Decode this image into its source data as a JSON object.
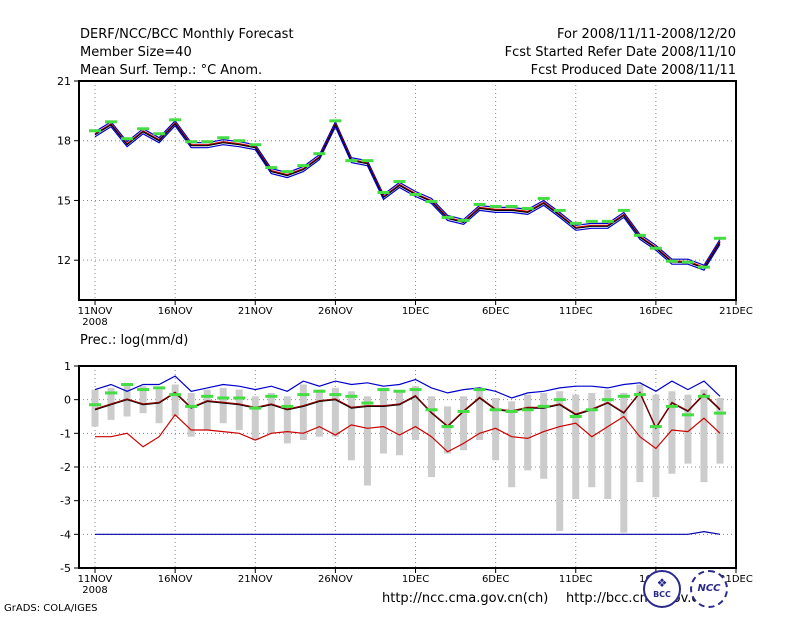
{
  "header": {
    "title": "DERF/NCC/BCC Monthly Forecast",
    "member": "Member Size=40",
    "variable": "Mean Surf. Temp.: °C Anom.",
    "period": "For 2008/11/11-2008/12/20",
    "started": "Fcst Started Refer Date 2008/11/10",
    "produced": "Fcst Produced Date 2008/11/11"
  },
  "precip_label": "Prec.: log(mm/d)",
  "footer": {
    "credit": "GrADS: COLA/IGES",
    "url1": "http://ncc.cma.gov.cn(ch)",
    "url2": "http://bcc.cma.gov.cn",
    "logo1": "BCC",
    "logo2": "NCC"
  },
  "colors": {
    "series_blue": "#0000cc",
    "series_red": "#cc0000",
    "series_black": "#000000",
    "observed": "#44dd44",
    "bars": "#cccccc",
    "grid": "#888888"
  },
  "chart_data": [
    {
      "type": "line",
      "title": "Mean Surf. Temp.: °C Anom.",
      "xlabel": "",
      "ylabel": "",
      "x": [
        0,
        1,
        2,
        3,
        4,
        5,
        6,
        7,
        8,
        9,
        10,
        11,
        12,
        13,
        14,
        15,
        16,
        17,
        18,
        19,
        20,
        21,
        22,
        23,
        24,
        25,
        26,
        27,
        28,
        29,
        30,
        31,
        32,
        33,
        34,
        35,
        36,
        37,
        38,
        39
      ],
      "xlim": [
        -1,
        40
      ],
      "ylim": [
        10,
        21
      ],
      "yticks": [
        12,
        15,
        18,
        21
      ],
      "xticks": [
        {
          "x": 0,
          "label": "11NOV"
        },
        {
          "x": 5,
          "label": "16NOV"
        },
        {
          "x": 10,
          "label": "21NOV"
        },
        {
          "x": 15,
          "label": "26NOV"
        },
        {
          "x": 20,
          "label": "1DEC"
        },
        {
          "x": 25,
          "label": "6DEC"
        },
        {
          "x": 30,
          "label": "11DEC"
        },
        {
          "x": 35,
          "label": "16DEC"
        },
        {
          "x": 40,
          "label": "21DEC"
        }
      ],
      "year_label": "2008",
      "grid": true,
      "series": [
        {
          "name": "upper",
          "color": "#0000cc",
          "values": [
            18.45,
            18.95,
            17.95,
            18.6,
            18.15,
            19.0,
            17.9,
            17.9,
            18.05,
            17.95,
            17.8,
            16.6,
            16.4,
            16.7,
            17.3,
            18.95,
            17.15,
            17.0,
            15.3,
            15.9,
            15.45,
            15.1,
            14.25,
            14.05,
            14.75,
            14.65,
            14.65,
            14.55,
            15.0,
            14.4,
            13.75,
            13.85,
            13.85,
            14.4,
            13.3,
            12.75,
            12.05,
            12.05,
            11.75,
            13.05
          ]
        },
        {
          "name": "red",
          "color": "#cc0000",
          "values": [
            18.35,
            18.85,
            17.85,
            18.5,
            18.05,
            18.9,
            17.8,
            17.8,
            17.95,
            17.85,
            17.7,
            16.5,
            16.3,
            16.6,
            17.2,
            18.85,
            17.05,
            16.9,
            15.2,
            15.8,
            15.35,
            15.0,
            14.15,
            13.95,
            14.65,
            14.55,
            14.55,
            14.45,
            14.9,
            14.3,
            13.65,
            13.75,
            13.75,
            14.3,
            13.2,
            12.65,
            11.95,
            11.95,
            11.65,
            12.95
          ]
        },
        {
          "name": "mean",
          "color": "#000000",
          "values": [
            18.3,
            18.8,
            17.8,
            18.45,
            18.0,
            18.85,
            17.75,
            17.75,
            17.9,
            17.8,
            17.65,
            16.45,
            16.25,
            16.55,
            17.15,
            18.8,
            17.0,
            16.85,
            15.15,
            15.75,
            15.3,
            14.95,
            14.1,
            13.9,
            14.6,
            14.5,
            14.5,
            14.4,
            14.85,
            14.25,
            13.6,
            13.7,
            13.7,
            14.25,
            13.15,
            12.6,
            11.9,
            11.9,
            11.6,
            12.9
          ]
        },
        {
          "name": "lower",
          "color": "#0000cc",
          "values": [
            18.2,
            18.7,
            17.7,
            18.35,
            17.9,
            18.75,
            17.65,
            17.65,
            17.8,
            17.7,
            17.55,
            16.35,
            16.15,
            16.45,
            17.05,
            18.7,
            16.9,
            16.75,
            15.05,
            15.65,
            15.2,
            14.85,
            14.0,
            13.8,
            14.5,
            14.4,
            14.4,
            14.3,
            14.75,
            14.15,
            13.5,
            13.6,
            13.6,
            14.15,
            13.05,
            12.5,
            11.8,
            11.8,
            11.5,
            12.8
          ]
        },
        {
          "name": "observed",
          "color": "#44dd44",
          "marker": "dash",
          "values": [
            18.5,
            18.95,
            18.1,
            18.6,
            18.35,
            19.05,
            17.95,
            17.95,
            18.15,
            18.0,
            17.8,
            16.65,
            16.45,
            16.75,
            17.35,
            19.0,
            17.0,
            17.0,
            15.4,
            15.95,
            15.3,
            14.95,
            14.15,
            14.0,
            14.8,
            14.7,
            14.7,
            14.6,
            15.1,
            14.5,
            13.85,
            13.95,
            13.95,
            14.5,
            13.25,
            12.6,
            11.95,
            11.9,
            11.65,
            13.1
          ]
        }
      ]
    },
    {
      "type": "line",
      "title": "Prec.: log(mm/d)",
      "xlabel": "",
      "ylabel": "",
      "x": [
        0,
        1,
        2,
        3,
        4,
        5,
        6,
        7,
        8,
        9,
        10,
        11,
        12,
        13,
        14,
        15,
        16,
        17,
        18,
        19,
        20,
        21,
        22,
        23,
        24,
        25,
        26,
        27,
        28,
        29,
        30,
        31,
        32,
        33,
        34,
        35,
        36,
        37,
        38,
        39
      ],
      "xlim": [
        -1,
        40
      ],
      "ylim": [
        -5,
        1
      ],
      "yticks": [
        -5,
        -4,
        -3,
        -2,
        -1,
        0,
        1
      ],
      "xticks": [
        {
          "x": 0,
          "label": "11NOV"
        },
        {
          "x": 5,
          "label": "16NOV"
        },
        {
          "x": 10,
          "label": "21NOV"
        },
        {
          "x": 15,
          "label": "26NOV"
        },
        {
          "x": 20,
          "label": "1DEC"
        },
        {
          "x": 25,
          "label": "6DEC"
        },
        {
          "x": 30,
          "label": "11DEC"
        },
        {
          "x": 35,
          "label": "16DEC"
        },
        {
          "x": 40,
          "label": "21DEC"
        }
      ],
      "year_label": "2008",
      "grid": true,
      "bars": {
        "name": "ensemble range",
        "color": "#cccccc",
        "low": [
          -0.8,
          -0.6,
          -0.5,
          -0.4,
          -0.7,
          -0.5,
          -1.1,
          -0.9,
          -0.7,
          -0.9,
          -1.2,
          -1.0,
          -1.3,
          -1.2,
          -1.1,
          -1.1,
          -1.8,
          -2.55,
          -1.6,
          -1.65,
          -1.2,
          -2.3,
          -1.6,
          -1.5,
          -1.2,
          -1.8,
          -2.6,
          -2.1,
          -2.35,
          -3.9,
          -2.95,
          -2.6,
          -2.95,
          -3.95,
          -2.45,
          -2.9,
          -2.2,
          -1.9,
          -2.45,
          -1.9
        ],
        "high": [
          0.3,
          0.35,
          0.5,
          0.4,
          0.3,
          0.45,
          0.2,
          0.3,
          0.35,
          0.3,
          0.1,
          0.2,
          0.1,
          0.45,
          0.3,
          0.35,
          0.25,
          0.1,
          0.35,
          0.25,
          0.4,
          0.1,
          -0.2,
          0.1,
          0.3,
          0.05,
          -0.05,
          0.15,
          0.2,
          0.25,
          0.15,
          0.2,
          0.3,
          0.2,
          0.45,
          0.15,
          0.25,
          0.15,
          0.3,
          0.05
        ]
      },
      "series": [
        {
          "name": "upper",
          "color": "#0000cc",
          "values": [
            0.3,
            0.45,
            0.25,
            0.45,
            0.45,
            0.7,
            0.25,
            0.35,
            0.45,
            0.4,
            0.3,
            0.4,
            0.25,
            0.55,
            0.4,
            0.55,
            0.45,
            0.5,
            0.4,
            0.45,
            0.6,
            0.35,
            0.2,
            0.3,
            0.35,
            0.25,
            0.05,
            0.2,
            0.25,
            0.35,
            0.4,
            0.4,
            0.35,
            0.45,
            0.5,
            0.25,
            0.55,
            0.3,
            0.55,
            0.1
          ]
        },
        {
          "name": "red",
          "color": "#cc0000",
          "values": [
            -1.1,
            -1.1,
            -1.0,
            -1.4,
            -1.1,
            -0.45,
            -0.9,
            -0.9,
            -0.95,
            -1.0,
            -1.2,
            -1.0,
            -0.95,
            -1.0,
            -0.8,
            -1.05,
            -0.75,
            -0.85,
            -0.8,
            -1.05,
            -0.8,
            -1.1,
            -1.55,
            -1.3,
            -1.0,
            -0.85,
            -1.1,
            -1.15,
            -0.95,
            -0.8,
            -0.7,
            -1.1,
            -0.8,
            -0.5,
            -1.1,
            -1.45,
            -0.9,
            -0.95,
            -0.55,
            -1.0
          ]
        },
        {
          "name": "mean",
          "color": "#000000",
          "values": [
            -0.3,
            -0.15,
            0.0,
            -0.15,
            -0.1,
            0.2,
            -0.25,
            -0.05,
            -0.1,
            -0.15,
            -0.25,
            -0.15,
            -0.3,
            -0.2,
            -0.05,
            0.0,
            -0.25,
            -0.2,
            -0.2,
            -0.15,
            0.1,
            -0.4,
            -0.8,
            -0.35,
            0.05,
            -0.3,
            -0.35,
            -0.25,
            -0.25,
            -0.15,
            -0.45,
            -0.3,
            -0.1,
            -0.4,
            0.2,
            -0.85,
            -0.1,
            -0.35,
            0.15,
            -0.3
          ]
        },
        {
          "name": "dark-red",
          "color": "#880000",
          "values": [
            -0.28,
            -0.13,
            0.02,
            -0.13,
            -0.08,
            0.22,
            -0.23,
            -0.03,
            -0.08,
            -0.13,
            -0.23,
            -0.13,
            -0.28,
            -0.18,
            -0.03,
            0.02,
            -0.23,
            -0.18,
            -0.18,
            -0.13,
            0.12,
            -0.38,
            -0.78,
            -0.33,
            0.07,
            -0.28,
            -0.33,
            -0.23,
            -0.23,
            -0.13,
            -0.43,
            -0.28,
            -0.08,
            -0.38,
            0.22,
            -0.83,
            -0.08,
            -0.33,
            0.17,
            -0.28
          ]
        },
        {
          "name": "lower-bound",
          "color": "#0000aa",
          "values": [
            -4,
            -4,
            -4,
            -4,
            -4,
            -4,
            -4,
            -4,
            -4,
            -4,
            -4,
            -4,
            -4,
            -4,
            -4,
            -4,
            -4,
            -4,
            -4,
            -4,
            -4,
            -4,
            -4,
            -4,
            -4,
            -4,
            -4,
            -4,
            -4,
            -4,
            -4,
            -4,
            -4,
            -4,
            -4,
            -4,
            -4,
            -4,
            -3.92,
            -4
          ]
        },
        {
          "name": "observed",
          "color": "#44dd44",
          "marker": "dash",
          "values": [
            -0.15,
            0.2,
            0.45,
            0.3,
            0.35,
            0.15,
            -0.2,
            0.1,
            0.05,
            0.05,
            -0.25,
            0.1,
            -0.2,
            0.15,
            0.25,
            0.15,
            0.1,
            -0.1,
            0.3,
            0.25,
            0.3,
            -0.3,
            -0.8,
            -0.35,
            0.3,
            -0.3,
            -0.35,
            -0.3,
            -0.2,
            0.0,
            -0.5,
            -0.3,
            0.0,
            0.1,
            0.15,
            -0.8,
            -0.2,
            -0.45,
            0.1,
            -0.4
          ]
        }
      ]
    }
  ]
}
